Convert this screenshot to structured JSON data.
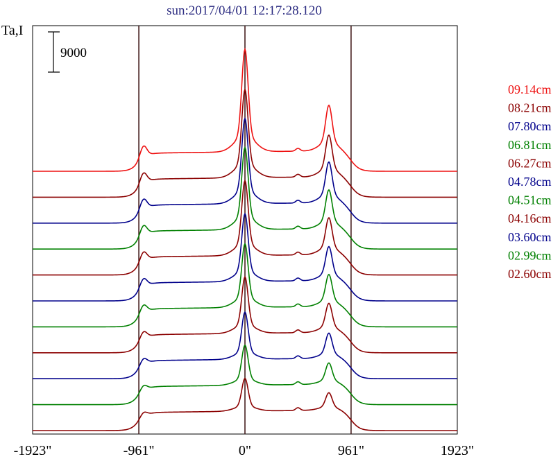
{
  "chart_data": {
    "type": "line",
    "title": "sun:2017/04/01 12:17:28.120",
    "ylabel": "Ta,I",
    "scale_bar_label": "9000",
    "x_ticks": [
      "-1923\"",
      "-961\"",
      "0\"",
      "961\"",
      "1923\""
    ],
    "x_tick_values": [
      -1923,
      -961,
      0,
      961,
      1923
    ],
    "vertical_lines": [
      -961,
      0,
      961
    ],
    "xlim": [
      -1923,
      1923
    ],
    "series": [
      {
        "name": "09.14cm",
        "color": "#ee1111",
        "peak": 1.0,
        "limb_peak": 0.47
      },
      {
        "name": "08.21cm",
        "color": "#8b0000",
        "peak": 0.86,
        "limb_peak": 0.43
      },
      {
        "name": "07.80cm",
        "color": "#00008b",
        "peak": 0.83,
        "limb_peak": 0.42
      },
      {
        "name": "06.81cm",
        "color": "#008000",
        "peak": 0.8,
        "limb_peak": 0.4
      },
      {
        "name": "06.27cm",
        "color": "#8b0000",
        "peak": 0.73,
        "limb_peak": 0.38
      },
      {
        "name": "04.78cm",
        "color": "#00008b",
        "peak": 0.66,
        "limb_peak": 0.35
      },
      {
        "name": "04.51cm",
        "color": "#008000",
        "peak": 0.62,
        "limb_peak": 0.33
      },
      {
        "name": "04.16cm",
        "color": "#8b0000",
        "peak": 0.55,
        "limb_peak": 0.3
      },
      {
        "name": "03.60cm",
        "color": "#00008b",
        "peak": 0.46,
        "limb_peak": 0.26
      },
      {
        "name": "02.99cm",
        "color": "#008000",
        "peak": 0.39,
        "limb_peak": 0.22
      },
      {
        "name": "02.60cm",
        "color": "#8b0000",
        "peak": 0.32,
        "limb_peak": 0.18
      }
    ]
  }
}
